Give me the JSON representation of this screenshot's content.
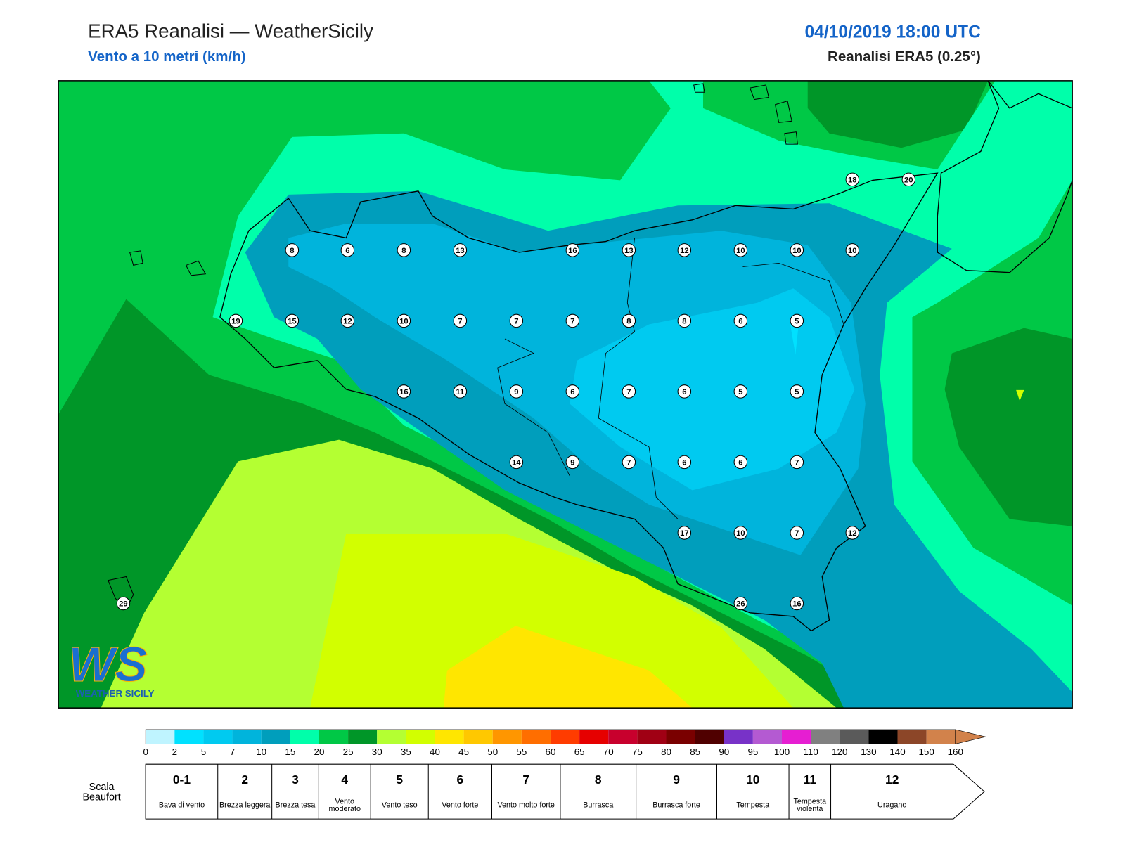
{
  "header": {
    "title": "ERA5 Reanalisi — WeatherSicily",
    "subtitle": "Vento a 10 metri (km/h)",
    "date": "04/10/2019 18:00 UTC",
    "source": "Reanalisi ERA5 (0.25°)"
  },
  "logo": {
    "mark": "WS",
    "text": "WEATHER SICILY"
  },
  "stations": [
    18,
    20,
    8,
    6,
    8,
    13,
    16,
    13,
    12,
    10,
    10,
    10,
    19,
    15,
    12,
    10,
    7,
    7,
    7,
    8,
    8,
    6,
    5,
    16,
    11,
    9,
    6,
    7,
    6,
    5,
    5,
    14,
    9,
    7,
    6,
    6,
    7,
    17,
    10,
    7,
    12,
    29,
    26,
    16
  ],
  "colorbar": {
    "ticks": [
      0,
      2,
      5,
      7,
      10,
      15,
      20,
      25,
      30,
      35,
      40,
      45,
      50,
      55,
      60,
      65,
      70,
      75,
      80,
      85,
      90,
      95,
      100,
      110,
      120,
      130,
      140,
      150,
      160
    ],
    "colors": [
      "#bff4ff",
      "#00e1ff",
      "#00caf0",
      "#00b4dc",
      "#009ebc",
      "#00ffaa",
      "#00c846",
      "#009628",
      "#b4ff32",
      "#d2ff00",
      "#ffe600",
      "#ffc800",
      "#ff9600",
      "#ff6e00",
      "#ff3c00",
      "#e60000",
      "#c8002d",
      "#a00014",
      "#7a0000",
      "#500000",
      "#7832c8",
      "#b45ad2",
      "#e61ed2",
      "#808080",
      "#5a5a5a",
      "#000000",
      "#8c4628",
      "#d2824b"
    ]
  },
  "beaufort": {
    "label": [
      "Scala",
      "Beaufort"
    ],
    "levels": [
      {
        "force": "0-1",
        "name": "Bava di vento"
      },
      {
        "force": "2",
        "name": "Brezza leggera"
      },
      {
        "force": "3",
        "name": "Brezza tesa"
      },
      {
        "force": "4",
        "name": "Vento moderato"
      },
      {
        "force": "5",
        "name": "Vento teso"
      },
      {
        "force": "6",
        "name": "Vento forte"
      },
      {
        "force": "7",
        "name": "Vento molto forte"
      },
      {
        "force": "8",
        "name": "Burrasca"
      },
      {
        "force": "9",
        "name": "Burrasca forte"
      },
      {
        "force": "10",
        "name": "Tempesta"
      },
      {
        "force": "11",
        "name": "Tempesta violenta"
      },
      {
        "force": "12",
        "name": "Uragano"
      }
    ]
  }
}
